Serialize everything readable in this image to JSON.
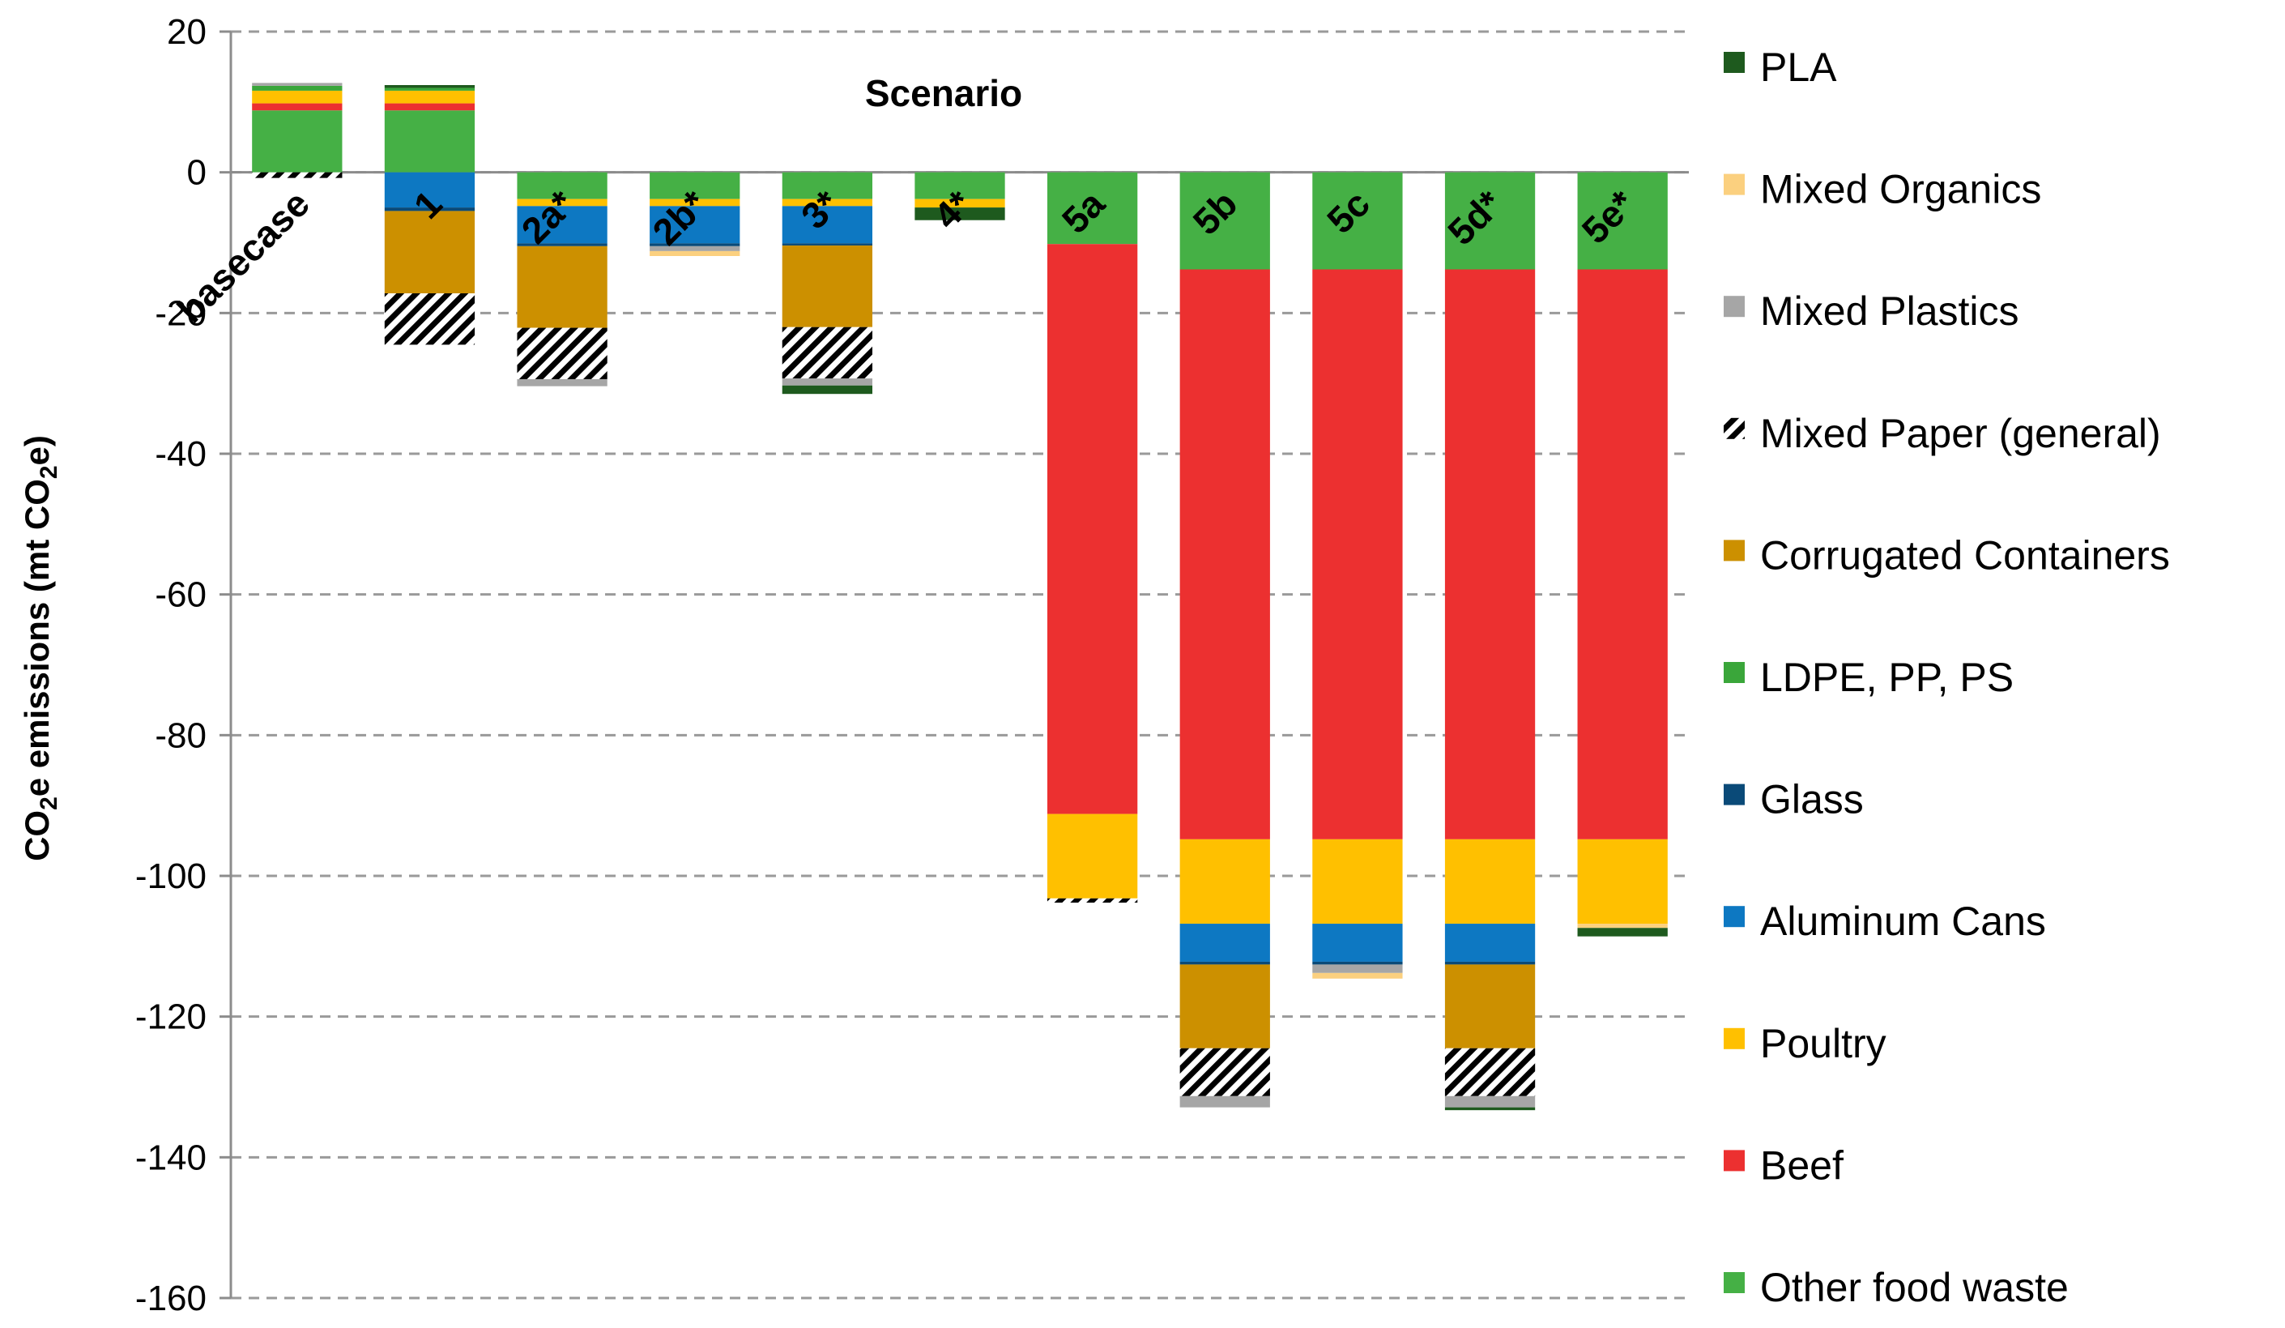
{
  "chart_data": {
    "type": "bar",
    "stacked": true,
    "title": "Scenario",
    "xlabel": "",
    "ylabel": "CO2e emissions (mt CO2e)",
    "ylabel_main": "CO",
    "ylabel_sub1": "2",
    "ylabel_mid": "e emissions (mt CO",
    "ylabel_sub2": "2",
    "ylabel_end": "e)",
    "ylim": [
      -160,
      20
    ],
    "yticks": [
      20,
      0,
      -20,
      -40,
      -60,
      -80,
      -100,
      -120,
      -140,
      -160
    ],
    "grid": true,
    "legend_position": "right",
    "categories": [
      "basecase",
      "1",
      "2a*",
      "2b*",
      "3*",
      "4*",
      "5a",
      "5b",
      "5c",
      "5d*",
      "5e*"
    ],
    "series": [
      {
        "name": "PLA",
        "color": "#1e5a1e",
        "pattern": false,
        "values": [
          0,
          0.4,
          0,
          0,
          -1.2,
          -1.8,
          0,
          0,
          0,
          -0.4,
          -1.2
        ]
      },
      {
        "name": "Mixed Organics",
        "color": "#fbd07f",
        "pattern": false,
        "values": [
          0,
          0,
          0,
          -0.7,
          0,
          0,
          0,
          0,
          -0.8,
          0,
          -0.6
        ]
      },
      {
        "name": "Mixed Plastics",
        "color": "#a6a6a6",
        "pattern": false,
        "values": [
          0.4,
          0,
          -1.0,
          -0.7,
          -1.0,
          0,
          0,
          -1.6,
          -1.2,
          -1.6,
          0
        ]
      },
      {
        "name": "Mixed Paper (general)",
        "color": "#ffffff",
        "pattern": true,
        "values": [
          -0.8,
          -7.3,
          -7.3,
          0,
          -7.3,
          0,
          -0.6,
          -6.8,
          0,
          -6.8,
          0
        ]
      },
      {
        "name": "Corrugated Containers",
        "color": "#cc9000",
        "pattern": false,
        "values": [
          0,
          -11.7,
          -11.6,
          0,
          -11.6,
          0,
          0,
          -11.9,
          0,
          -11.9,
          0
        ]
      },
      {
        "name": "LDPE, PP, PS",
        "color": "#3aa63a",
        "pattern": false,
        "values": [
          0.7,
          0.4,
          0,
          0,
          0,
          0,
          0,
          0,
          0,
          0,
          0
        ]
      },
      {
        "name": "Glass",
        "color": "#0a4a78",
        "pattern": false,
        "values": [
          0,
          -0.5,
          -0.4,
          -0.4,
          -0.3,
          0,
          0,
          -0.4,
          -0.4,
          -0.4,
          0
        ]
      },
      {
        "name": "Aluminum Cans",
        "color": "#0d78c2",
        "pattern": false,
        "values": [
          0,
          -5.0,
          -5.3,
          -5.3,
          -5.3,
          0,
          0,
          -5.4,
          -5.4,
          -5.4,
          0
        ]
      },
      {
        "name": "Poultry",
        "color": "#ffc000",
        "pattern": false,
        "values": [
          1.8,
          1.8,
          -1.0,
          -1.0,
          -1.0,
          -1.2,
          -12.0,
          -12.0,
          -12.0,
          -12.0,
          -12.0
        ]
      },
      {
        "name": "Beef",
        "color": "#ec3030",
        "pattern": false,
        "values": [
          1.0,
          1.0,
          0,
          0,
          0,
          0,
          -81.0,
          -81.0,
          -81.0,
          -81.0,
          -81.0
        ]
      },
      {
        "name": "Other food waste",
        "color": "#45b045",
        "pattern": false,
        "values": [
          8.8,
          8.8,
          -3.8,
          -3.8,
          -3.8,
          -3.8,
          -10.2,
          -13.8,
          -13.8,
          -13.8,
          -13.8
        ]
      }
    ]
  }
}
